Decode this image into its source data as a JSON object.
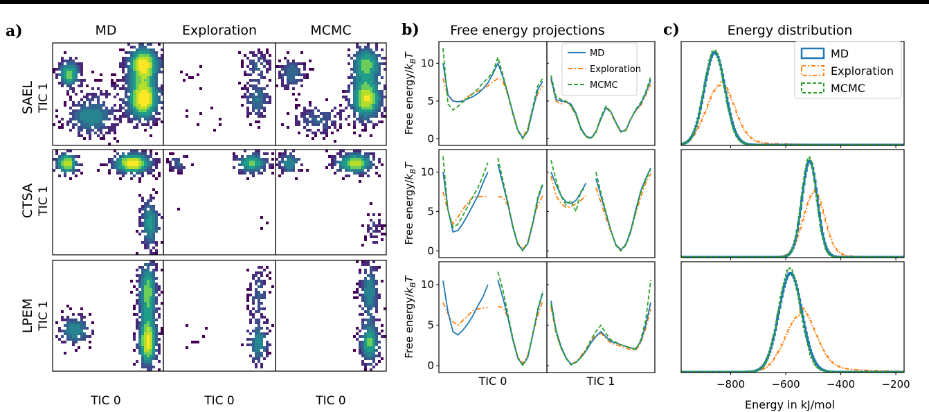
{
  "panel_a": {
    "letter": "a)",
    "columns": [
      "MD",
      "Exploration",
      "MCMC"
    ],
    "rows": [
      "SAEL",
      "CTSA",
      "LPEM"
    ],
    "ylabel": "TIC 1",
    "xlabel": "TIC 0"
  },
  "panel_b": {
    "letter": "b)",
    "title": "Free energy projections",
    "ylabel": "Free energy/",
    "ylabel_symbol": "k",
    "ylabel_sub": "B",
    "ylabel_T": "T",
    "xlabels": [
      "TIC 0",
      "TIC 1"
    ],
    "yticks": [
      "0",
      "5",
      "10"
    ],
    "legend": [
      "MD",
      "Exploration",
      "MCMC"
    ]
  },
  "panel_c": {
    "letter": "c)",
    "title": "Energy distribution",
    "xlabel": "Energy in kJ/mol",
    "xticks": [
      "−800",
      "−600",
      "−400",
      "−200"
    ],
    "legend": [
      "MD",
      "Exploration",
      "MCMC"
    ]
  },
  "colors": {
    "md": "#1f77b4",
    "exploration": "#ff7f0e",
    "mcmc": "#2ca02c",
    "viridis_low": "#440154",
    "viridis_high": "#fde725"
  },
  "chart_data": [
    {
      "type": "heatmap",
      "description_rows": [
        "SAEL",
        "CTSA",
        "LPEM"
      ],
      "description_cols": [
        "MD",
        "Exploration",
        "MCMC"
      ],
      "xlabel": "TIC 0",
      "ylabel": "TIC 1"
    },
    {
      "type": "line",
      "title": "Free energy projections",
      "ylim": [
        -0.5,
        12.5
      ],
      "rows": [
        {
          "name": "SAEL",
          "tic0": {
            "x": [
              0,
              0.05,
              0.1,
              0.15,
              0.2,
              0.25,
              0.3,
              0.35,
              0.4,
              0.45,
              0.5,
              0.55,
              0.6,
              0.65,
              0.7,
              0.75,
              0.8,
              0.85,
              0.9,
              0.95,
              1
            ],
            "MD": [
              10,
              5.8,
              5.0,
              4.9,
              5.0,
              5.3,
              5.6,
              6.0,
              6.6,
              7.4,
              8.6,
              10.0,
              8.2,
              6.0,
              3.5,
              1.2,
              0.1,
              1.0,
              3.8,
              6.5,
              7.6
            ],
            "Exploration": [
              8,
              5.6,
              5.1,
              4.8,
              5.1,
              5.6,
              6.0,
              6.3,
              6.6,
              7.0,
              7.5,
              8.0,
              7.6,
              5.8,
              3.2,
              1.0,
              0.2,
              1.4,
              4.0,
              6.0,
              7.0
            ],
            "MCMC": [
              12,
              4.6,
              3.8,
              4.3,
              4.9,
              5.4,
              6.0,
              6.6,
              7.4,
              8.0,
              8.8,
              10.8,
              8.5,
              5.9,
              3.4,
              1.1,
              0.0,
              1.2,
              4.2,
              7.0,
              8.0
            ]
          },
          "tic1": {
            "x": [
              0,
              0.05,
              0.1,
              0.15,
              0.2,
              0.25,
              0.3,
              0.35,
              0.4,
              0.45,
              0.5,
              0.55,
              0.6,
              0.65,
              0.7,
              0.75,
              0.8,
              0.85,
              0.9,
              0.95,
              1
            ],
            "MD": [
              8,
              5.2,
              5.0,
              4.9,
              4.6,
              3.4,
              1.4,
              0.4,
              0.1,
              0.9,
              2.6,
              4.1,
              3.6,
              2.2,
              1.0,
              1.1,
              2.6,
              3.8,
              4.6,
              6.0,
              7.8
            ],
            "Exploration": [
              7.8,
              5.0,
              4.6,
              4.9,
              4.3,
              3.1,
              1.3,
              0.3,
              0.1,
              1.0,
              2.8,
              4.2,
              3.4,
              2.0,
              0.9,
              1.2,
              2.7,
              3.7,
              4.4,
              5.8,
              7.2
            ],
            "MCMC": [
              8.4,
              5.6,
              5.2,
              5.0,
              4.4,
              3.2,
              1.2,
              0.3,
              0.0,
              0.8,
              2.9,
              4.3,
              3.6,
              2.1,
              0.9,
              1.1,
              2.6,
              3.9,
              4.8,
              6.2,
              8.2
            ]
          }
        },
        {
          "name": "CTSA",
          "tic0": {
            "x": [
              0,
              0.05,
              0.1,
              0.15,
              0.2,
              0.25,
              0.3,
              0.35,
              0.4,
              0.45,
              0.5,
              0.55,
              0.6,
              0.65,
              0.7,
              0.75,
              0.8,
              0.85,
              0.9,
              0.95,
              1
            ],
            "MD": [
              10,
              5.2,
              2.4,
              2.6,
              3.5,
              4.6,
              5.8,
              7.0,
              8.6,
              10.0,
              null,
              11.0,
              8.5,
              6.0,
              3.0,
              0.8,
              0.1,
              0.9,
              3.4,
              6.5,
              8.4
            ],
            "Exploration": [
              7.5,
              5.0,
              3.4,
              4.3,
              5.3,
              6.2,
              6.8,
              6.9,
              6.9,
              6.9,
              null,
              6.9,
              6.8,
              5.8,
              3.2,
              1.0,
              0.2,
              1.1,
              3.6,
              5.8,
              7.0
            ],
            "MCMC": [
              12,
              5.0,
              3.0,
              3.4,
              4.5,
              5.7,
              6.9,
              8.0,
              9.5,
              11.2,
              null,
              11.8,
              9.0,
              6.2,
              3.2,
              0.9,
              0.0,
              1.0,
              3.6,
              6.8,
              8.6
            ],
            "gap": [
              0.45,
              0.55
            ]
          },
          "tic1": {
            "x": [
              0,
              0.05,
              0.1,
              0.15,
              0.2,
              0.25,
              0.3,
              0.35,
              0.4,
              0.45,
              0.5,
              0.55,
              0.6,
              0.65,
              0.7,
              0.75,
              0.8,
              0.85,
              0.9,
              0.95,
              1
            ],
            "MD": [
              10,
              8.4,
              7.0,
              6.2,
              6.0,
              6.4,
              7.4,
              8.6,
              null,
              9.2,
              7.0,
              4.8,
              2.6,
              0.8,
              0.1,
              0.8,
              2.6,
              5.2,
              7.6,
              9.2,
              10.5
            ],
            "Exploration": [
              9.5,
              7.0,
              6.0,
              5.5,
              5.6,
              6.0,
              6.4,
              7.0,
              null,
              8.0,
              6.2,
              4.2,
              2.4,
              0.8,
              0.2,
              0.9,
              2.4,
              4.8,
              6.8,
              8.6,
              9.8
            ],
            "MCMC": [
              11.5,
              9.0,
              7.0,
              5.8,
              6.4,
              5.0,
              7.6,
              8.0,
              null,
              10.0,
              7.4,
              5.0,
              2.6,
              0.7,
              0.0,
              0.7,
              2.4,
              5.0,
              7.4,
              9.0,
              10.4
            ],
            "gap": [
              0.4,
              0.45
            ]
          }
        },
        {
          "name": "LPEM",
          "tic0": {
            "x": [
              0,
              0.05,
              0.1,
              0.15,
              0.2,
              0.25,
              0.3,
              0.35,
              0.4,
              0.45,
              0.5,
              0.55,
              0.6,
              0.65,
              0.7,
              0.75,
              0.8,
              0.85,
              0.9,
              0.95,
              1
            ],
            "MD": [
              10.5,
              6.6,
              4.2,
              3.8,
              4.4,
              5.2,
              6.2,
              7.4,
              8.5,
              10.0,
              null,
              10.6,
              8.4,
              6.0,
              3.2,
              0.9,
              0.1,
              1.0,
              3.8,
              6.8,
              9.0
            ],
            "Exploration": [
              7.8,
              6.4,
              5.4,
              5.0,
              5.6,
              6.2,
              6.8,
              7.0,
              7.1,
              7.2,
              null,
              7.3,
              7.2,
              6.0,
              3.4,
              1.1,
              0.3,
              1.3,
              3.9,
              6.2,
              8.0
            ],
            "MCMC": [
              null,
              null,
              null,
              null,
              null,
              null,
              null,
              null,
              null,
              null,
              null,
              11.6,
              9.4,
              6.4,
              3.4,
              1.0,
              0.0,
              1.1,
              3.9,
              7.0,
              9.2
            ],
            "gap": [
              0.45,
              0.55
            ]
          },
          "tic1": {
            "x": [
              0,
              0.05,
              0.1,
              0.15,
              0.2,
              0.25,
              0.3,
              0.35,
              0.4,
              0.45,
              0.5,
              0.55,
              0.6,
              0.65,
              0.7,
              0.75,
              0.8,
              0.85,
              0.9,
              0.95,
              1
            ],
            "MD": [
              8,
              4.4,
              2.4,
              1.0,
              0.2,
              0.4,
              1.0,
              1.8,
              2.8,
              3.6,
              4.2,
              3.6,
              3.0,
              2.8,
              2.6,
              2.4,
              2.2,
              2.1,
              3.0,
              5.0,
              7.8
            ],
            "Exploration": [
              7.2,
              4.0,
              2.2,
              0.9,
              0.2,
              0.5,
              1.2,
              2.1,
              3.0,
              3.8,
              4.0,
              3.4,
              2.8,
              2.6,
              2.4,
              2.2,
              2.0,
              1.9,
              2.8,
              4.6,
              7.0
            ],
            "MCMC": [
              7.6,
              4.2,
              2.2,
              0.9,
              0.1,
              0.4,
              1.0,
              1.9,
              3.2,
              4.2,
              5.0,
              4.0,
              3.2,
              2.9,
              2.6,
              2.4,
              2.2,
              2.0,
              3.2,
              5.6,
              10.6
            ]
          }
        }
      ]
    },
    {
      "type": "line",
      "title": "Energy distribution",
      "xlabel": "Energy in kJ/mol",
      "xlim": [
        -980,
        -170
      ],
      "rows": [
        {
          "name": "SAEL",
          "MD": {
            "peak": -860,
            "width": 38
          },
          "Exploration": {
            "peak": -840,
            "width": 50,
            "tail": 140,
            "tail_weight": 0.15
          },
          "MCMC": {
            "peak": -862,
            "width": 37
          }
        },
        {
          "name": "CTSA",
          "MD": {
            "peak": -515,
            "width": 28
          },
          "Exploration": {
            "peak": -500,
            "width": 38,
            "tail": 80,
            "tail_weight": 0.1
          },
          "MCMC": {
            "peak": -517,
            "width": 27
          }
        },
        {
          "name": "LPEM",
          "MD": {
            "peak": -585,
            "width": 42
          },
          "Exploration": {
            "peak": -550,
            "width": 55,
            "tail": 140,
            "tail_weight": 0.25
          },
          "MCMC": {
            "peak": -588,
            "width": 40
          }
        }
      ]
    }
  ]
}
